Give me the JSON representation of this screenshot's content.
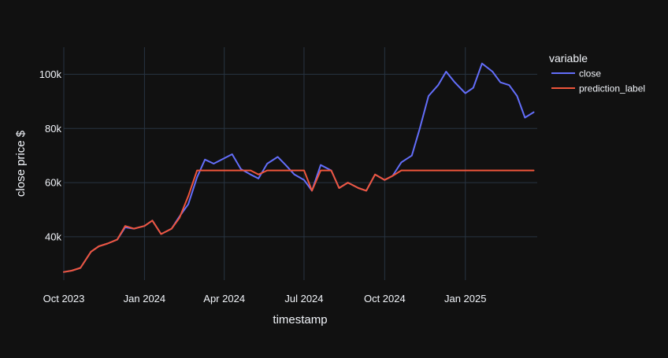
{
  "chart_data": {
    "type": "line",
    "title": "",
    "xlabel": "timestamp",
    "ylabel": "close price $",
    "x_ticks": [
      "Oct 2023",
      "Jan 2024",
      "Apr 2024",
      "Jul 2024",
      "Oct 2024",
      "Jan 2025"
    ],
    "y_ticks": [
      "40k",
      "60k",
      "80k",
      "100k"
    ],
    "xlim": [
      "2023-10-01",
      "2025-03-24"
    ],
    "ylim": [
      24000,
      110000
    ],
    "grid": true,
    "legend": {
      "title": "variable",
      "position": "right"
    },
    "x": [
      "2023-10-01",
      "2023-10-10",
      "2023-10-20",
      "2023-11-01",
      "2023-11-10",
      "2023-11-20",
      "2023-12-01",
      "2023-12-10",
      "2023-12-20",
      "2024-01-01",
      "2024-01-10",
      "2024-01-20",
      "2024-02-01",
      "2024-02-10",
      "2024-02-20",
      "2024-03-01",
      "2024-03-10",
      "2024-03-20",
      "2024-04-01",
      "2024-04-10",
      "2024-04-20",
      "2024-05-01",
      "2024-05-10",
      "2024-05-20",
      "2024-06-01",
      "2024-06-10",
      "2024-06-20",
      "2024-07-01",
      "2024-07-10",
      "2024-07-20",
      "2024-08-01",
      "2024-08-10",
      "2024-08-20",
      "2024-09-01",
      "2024-09-10",
      "2024-09-20",
      "2024-10-01",
      "2024-10-10",
      "2024-10-20",
      "2024-11-01",
      "2024-11-10",
      "2024-11-20",
      "2024-12-01",
      "2024-12-10",
      "2024-12-20",
      "2025-01-01",
      "2025-01-10",
      "2025-01-20",
      "2025-02-01",
      "2025-02-10",
      "2025-02-20",
      "2025-03-01",
      "2025-03-10",
      "2025-03-20"
    ],
    "series": [
      {
        "name": "close",
        "color": "#636efa",
        "values": [
          27000,
          27500,
          28500,
          34500,
          36500,
          37500,
          39000,
          43500,
          43000,
          44000,
          46000,
          41000,
          43000,
          47500,
          52000,
          62000,
          68500,
          67000,
          69000,
          70500,
          65000,
          63000,
          61500,
          67000,
          69500,
          66500,
          63000,
          61000,
          57000,
          66500,
          64500,
          58000,
          60000,
          58000,
          57000,
          63000,
          61000,
          62500,
          67500,
          70000,
          80000,
          92000,
          96000,
          101000,
          97000,
          93000,
          95000,
          104000,
          101000,
          97000,
          96000,
          92000,
          84000,
          86000
        ]
      },
      {
        "name": "prediction_label",
        "color": "#ef553b",
        "values": [
          27000,
          27500,
          28500,
          34500,
          36500,
          37500,
          39000,
          44000,
          43000,
          44000,
          46000,
          41000,
          43000,
          47000,
          55000,
          64500,
          64500,
          64500,
          64500,
          64500,
          64500,
          64500,
          63000,
          64500,
          64500,
          64500,
          64500,
          64500,
          57000,
          64500,
          64500,
          58000,
          60000,
          58000,
          57000,
          63000,
          61000,
          62500,
          64500,
          64500,
          64500,
          64500,
          64500,
          64500,
          64500,
          64500,
          64500,
          64500,
          64500,
          64500,
          64500,
          64500,
          64500,
          64500
        ]
      }
    ]
  }
}
